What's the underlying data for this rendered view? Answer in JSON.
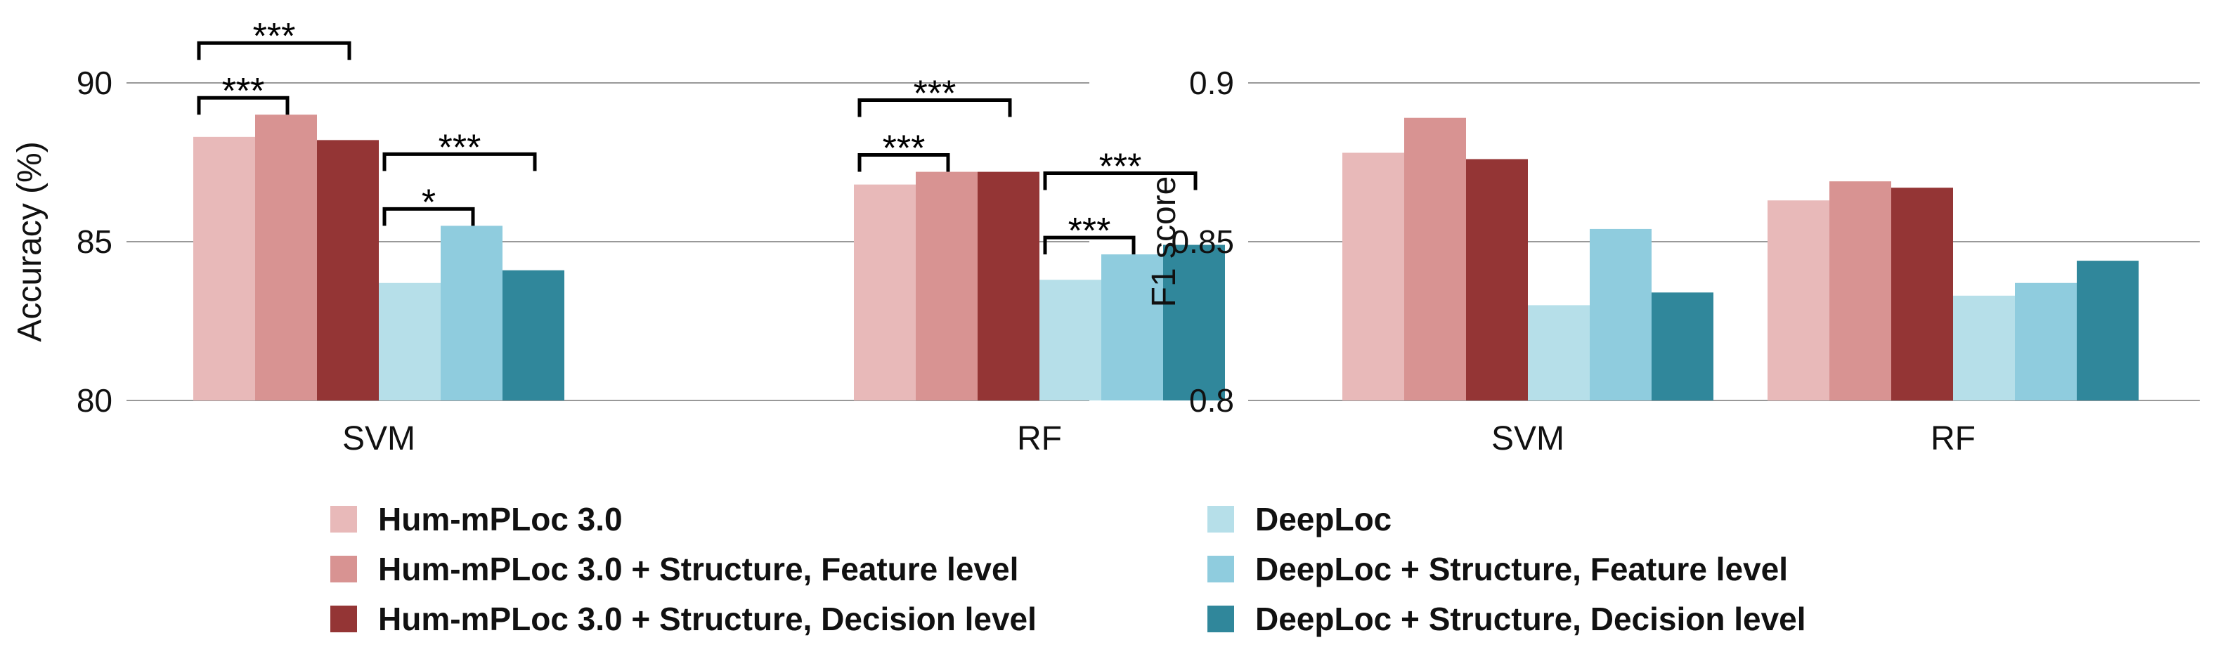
{
  "colors": {
    "hum": "#e8b9b9",
    "hum_feature": "#d89392",
    "hum_decision": "#943535",
    "deep": "#b6dfe9",
    "deep_feature": "#8fccde",
    "deep_decision": "#30879b",
    "grid": "#999999",
    "text": "#111111"
  },
  "legend": [
    {
      "label": "Hum-mPLoc 3.0",
      "color_key": "hum"
    },
    {
      "label": "Hum-mPLoc 3.0 + Structure, Feature level",
      "color_key": "hum_feature"
    },
    {
      "label": "Hum-mPLoc 3.0 + Structure, Decision level",
      "color_key": "hum_decision"
    },
    {
      "label": "DeepLoc",
      "color_key": "deep"
    },
    {
      "label": "DeepLoc + Structure, Feature level",
      "color_key": "deep_feature"
    },
    {
      "label": "DeepLoc + Structure, Decision level",
      "color_key": "deep_decision"
    }
  ],
  "chart_data": [
    {
      "type": "bar",
      "title": "",
      "xlabel": "",
      "ylabel": "Accuracy (%)",
      "ylim": [
        80,
        90
      ],
      "yticks": [
        80,
        85,
        90
      ],
      "ytick_labels": [
        "80",
        "85",
        "90"
      ],
      "grid": true,
      "categories": [
        "SVM",
        "RF"
      ],
      "series": [
        {
          "name": "Hum-mPLoc 3.0",
          "color_key": "hum",
          "values": [
            88.3,
            86.8
          ]
        },
        {
          "name": "Hum-mPLoc 3.0 + Structure, Feature level",
          "color_key": "hum_feature",
          "values": [
            89.0,
            87.2
          ]
        },
        {
          "name": "Hum-mPLoc 3.0 + Structure, Decision level",
          "color_key": "hum_decision",
          "values": [
            88.2,
            87.2
          ]
        },
        {
          "name": "DeepLoc",
          "color_key": "deep",
          "values": [
            83.7,
            83.8
          ]
        },
        {
          "name": "DeepLoc + Structure, Feature level",
          "color_key": "deep_feature",
          "values": [
            85.5,
            84.6
          ]
        },
        {
          "name": "DeepLoc + Structure, Decision level",
          "color_key": "deep_decision",
          "values": [
            84.1,
            84.9
          ]
        }
      ],
      "annotations": [
        {
          "category": 0,
          "from_series": 0,
          "to_series": 1,
          "label": "***",
          "level": 0
        },
        {
          "category": 0,
          "from_series": 0,
          "to_series": 2,
          "label": "***",
          "level": 1
        },
        {
          "category": 0,
          "from_series": 3,
          "to_series": 4,
          "label": "*",
          "level": 0
        },
        {
          "category": 0,
          "from_series": 3,
          "to_series": 5,
          "label": "***",
          "level": 1
        },
        {
          "category": 1,
          "from_series": 0,
          "to_series": 1,
          "label": "***",
          "level": 0
        },
        {
          "category": 1,
          "from_series": 0,
          "to_series": 2,
          "label": "***",
          "level": 1
        },
        {
          "category": 1,
          "from_series": 3,
          "to_series": 4,
          "label": "***",
          "level": 0
        },
        {
          "category": 1,
          "from_series": 3,
          "to_series": 5,
          "label": "***",
          "level": 1
        }
      ]
    },
    {
      "type": "bar",
      "title": "",
      "xlabel": "",
      "ylabel": "F1 score",
      "ylim": [
        0.8,
        0.9
      ],
      "yticks": [
        0.8,
        0.85,
        0.9
      ],
      "ytick_labels": [
        "0.8",
        "0.85",
        "0.9"
      ],
      "grid": true,
      "categories": [
        "SVM",
        "RF"
      ],
      "series": [
        {
          "name": "Hum-mPLoc 3.0",
          "color_key": "hum",
          "values": [
            0.878,
            0.863
          ]
        },
        {
          "name": "Hum-mPLoc 3.0 + Structure, Feature level",
          "color_key": "hum_feature",
          "values": [
            0.889,
            0.869
          ]
        },
        {
          "name": "Hum-mPLoc 3.0 + Structure, Decision level",
          "color_key": "hum_decision",
          "values": [
            0.876,
            0.867
          ]
        },
        {
          "name": "DeepLoc",
          "color_key": "deep",
          "values": [
            0.83,
            0.833
          ]
        },
        {
          "name": "DeepLoc + Structure, Feature level",
          "color_key": "deep_feature",
          "values": [
            0.854,
            0.837
          ]
        },
        {
          "name": "DeepLoc + Structure, Decision level",
          "color_key": "deep_decision",
          "values": [
            0.834,
            0.844
          ]
        }
      ],
      "annotations": []
    }
  ]
}
